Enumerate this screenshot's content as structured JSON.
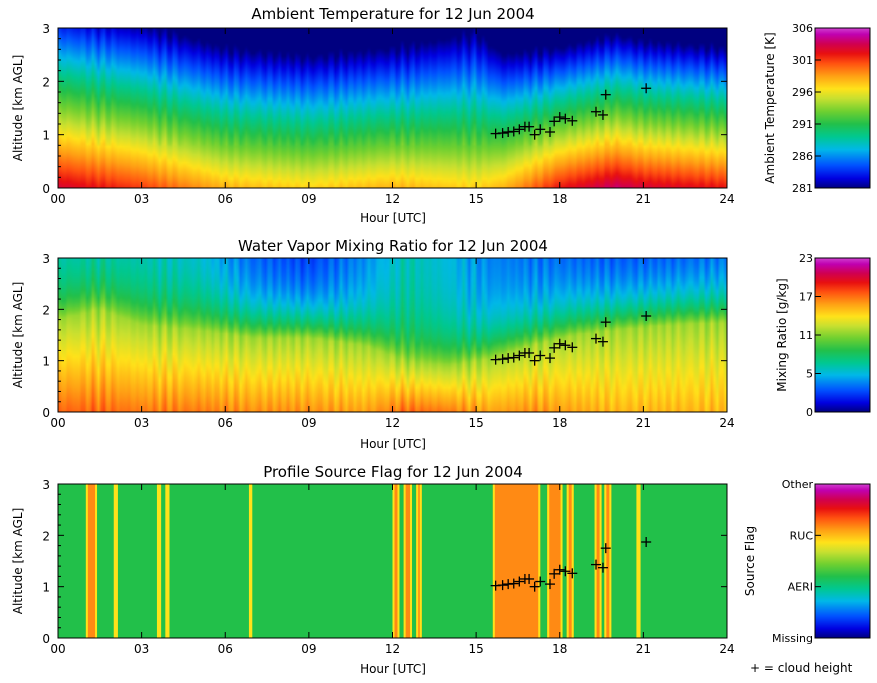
{
  "colors": {
    "missing": "#000080",
    "aeri": "#22c04a",
    "ruc": "#ff8a14",
    "other": "#ffe21a",
    "cloud_marker": "#000000"
  },
  "legend": {
    "cloud_text": "+ = cloud height"
  },
  "chart_data": [
    {
      "type": "heatmap",
      "title": "Ambient Temperature for 12 Jun 2004",
      "xlabel": "Hour [UTC]",
      "ylabel": "Altitude [km AGL]",
      "xlim": [
        0,
        24
      ],
      "ylim": [
        0,
        3
      ],
      "xticks": [
        "00",
        "03",
        "06",
        "09",
        "12",
        "15",
        "18",
        "21",
        "24"
      ],
      "yticks": [
        "0",
        "1",
        "2",
        "3"
      ],
      "colorbar": {
        "label": "Ambient Temperature [K]",
        "ticks": [
          "281",
          "286",
          "291",
          "296",
          "301",
          "306"
        ],
        "range": [
          281,
          306
        ]
      },
      "field": {
        "hours": [
          0,
          3,
          6,
          9,
          12,
          15,
          16,
          18,
          20,
          21,
          24
        ],
        "surface": [
          303,
          301,
          298,
          297,
          298,
          297,
          298,
          302,
          304,
          303,
          302
        ],
        "lapse_k_per_km": [
          6.5,
          6.5,
          6.5,
          6.5,
          6.5,
          5.5,
          6.8,
          8.0,
          8.0,
          8.0,
          8.0
        ]
      },
      "cloud_height": [
        {
          "x": 15.7,
          "y": 1.02
        },
        {
          "x": 15.95,
          "y": 1.03
        },
        {
          "x": 16.15,
          "y": 1.05
        },
        {
          "x": 16.35,
          "y": 1.06
        },
        {
          "x": 16.55,
          "y": 1.1
        },
        {
          "x": 16.75,
          "y": 1.15
        },
        {
          "x": 16.9,
          "y": 1.15
        },
        {
          "x": 17.1,
          "y": 1.0
        },
        {
          "x": 17.3,
          "y": 1.1
        },
        {
          "x": 17.65,
          "y": 1.05
        },
        {
          "x": 17.8,
          "y": 1.25
        },
        {
          "x": 18.0,
          "y": 1.33
        },
        {
          "x": 18.2,
          "y": 1.3
        },
        {
          "x": 18.45,
          "y": 1.26
        },
        {
          "x": 19.3,
          "y": 1.43
        },
        {
          "x": 19.55,
          "y": 1.37
        },
        {
          "x": 19.65,
          "y": 1.75
        },
        {
          "x": 21.1,
          "y": 1.87
        }
      ]
    },
    {
      "type": "heatmap",
      "title": "Water Vapor Mixing Ratio for 12 Jun 2004",
      "xlabel": "Hour [UTC]",
      "ylabel": "Altitude [km AGL]",
      "xlim": [
        0,
        24
      ],
      "ylim": [
        0,
        3
      ],
      "xticks": [
        "00",
        "03",
        "06",
        "09",
        "12",
        "15",
        "18",
        "21",
        "24"
      ],
      "yticks": [
        "0",
        "1",
        "2",
        "3"
      ],
      "colorbar": {
        "label": "Mixing Ratio [g/kg]",
        "ticks": [
          "0",
          "5",
          "11",
          "17",
          "23"
        ],
        "range": [
          0,
          23
        ]
      },
      "field": {
        "hours": [
          0,
          1.5,
          3,
          5,
          7,
          9,
          11,
          12.5,
          14,
          15.5,
          17,
          18.5,
          20,
          22,
          24
        ],
        "boundary_layer_top_km": [
          1.8,
          2.0,
          1.7,
          1.6,
          1.45,
          1.45,
          1.3,
          1.0,
          0.9,
          1.05,
          1.3,
          1.5,
          1.6,
          1.7,
          1.75
        ],
        "surface_g_per_kg": [
          17.5,
          17.5,
          17.0,
          17.0,
          16.5,
          16.5,
          16.0,
          17.5,
          17.0,
          16.0,
          16.5,
          16.0,
          15.5,
          15.5,
          15.5
        ],
        "upper_g_per_kg": [
          6.0,
          6.0,
          6.0,
          5.5,
          3.0,
          2.0,
          4.0,
          6.5,
          5.5,
          4.0,
          3.5,
          3.0,
          2.5,
          2.5,
          3.0
        ]
      },
      "cloud_height": [
        {
          "x": 15.7,
          "y": 1.02
        },
        {
          "x": 15.95,
          "y": 1.03
        },
        {
          "x": 16.15,
          "y": 1.05
        },
        {
          "x": 16.35,
          "y": 1.06
        },
        {
          "x": 16.55,
          "y": 1.1
        },
        {
          "x": 16.75,
          "y": 1.15
        },
        {
          "x": 16.9,
          "y": 1.15
        },
        {
          "x": 17.1,
          "y": 1.0
        },
        {
          "x": 17.3,
          "y": 1.1
        },
        {
          "x": 17.65,
          "y": 1.05
        },
        {
          "x": 17.8,
          "y": 1.25
        },
        {
          "x": 18.0,
          "y": 1.33
        },
        {
          "x": 18.2,
          "y": 1.3
        },
        {
          "x": 18.45,
          "y": 1.26
        },
        {
          "x": 19.3,
          "y": 1.43
        },
        {
          "x": 19.55,
          "y": 1.37
        },
        {
          "x": 19.65,
          "y": 1.75
        },
        {
          "x": 21.1,
          "y": 1.87
        }
      ]
    },
    {
      "type": "heatmap",
      "title": "Profile Source Flag for 12 Jun 2004",
      "xlabel": "Hour [UTC]",
      "ylabel": "Altitude [km AGL]",
      "xlim": [
        0,
        24
      ],
      "ylim": [
        0,
        3
      ],
      "xticks": [
        "00",
        "03",
        "06",
        "09",
        "12",
        "15",
        "18",
        "21",
        "24"
      ],
      "yticks": [
        "0",
        "1",
        "2",
        "3"
      ],
      "colorbar": {
        "label": "Source Flag",
        "ticks": [
          "Missing",
          "AERI",
          "RUC",
          "Other"
        ]
      },
      "default_source": "AERI",
      "segments": [
        {
          "start": 1.0,
          "end": 1.4,
          "source": "RUC"
        },
        {
          "start": 2.0,
          "end": 2.15,
          "source": "Other"
        },
        {
          "start": 3.55,
          "end": 3.7,
          "source": "Other"
        },
        {
          "start": 3.85,
          "end": 4.0,
          "source": "Other"
        },
        {
          "start": 6.85,
          "end": 6.97,
          "source": "Other"
        },
        {
          "start": 12.0,
          "end": 12.25,
          "source": "RUC"
        },
        {
          "start": 12.4,
          "end": 12.7,
          "source": "RUC"
        },
        {
          "start": 12.85,
          "end": 13.05,
          "source": "RUC"
        },
        {
          "start": 15.6,
          "end": 17.3,
          "source": "RUC"
        },
        {
          "start": 17.55,
          "end": 18.1,
          "source": "RUC"
        },
        {
          "start": 18.25,
          "end": 18.5,
          "source": "RUC"
        },
        {
          "start": 19.25,
          "end": 19.5,
          "source": "RUC"
        },
        {
          "start": 19.6,
          "end": 19.85,
          "source": "RUC"
        },
        {
          "start": 20.75,
          "end": 20.9,
          "source": "Other"
        }
      ],
      "cloud_height": [
        {
          "x": 15.7,
          "y": 1.02
        },
        {
          "x": 15.95,
          "y": 1.03
        },
        {
          "x": 16.15,
          "y": 1.05
        },
        {
          "x": 16.35,
          "y": 1.06
        },
        {
          "x": 16.55,
          "y": 1.1
        },
        {
          "x": 16.75,
          "y": 1.15
        },
        {
          "x": 16.9,
          "y": 1.15
        },
        {
          "x": 17.1,
          "y": 1.0
        },
        {
          "x": 17.3,
          "y": 1.1
        },
        {
          "x": 17.65,
          "y": 1.05
        },
        {
          "x": 17.8,
          "y": 1.25
        },
        {
          "x": 18.0,
          "y": 1.33
        },
        {
          "x": 18.2,
          "y": 1.3
        },
        {
          "x": 18.45,
          "y": 1.26
        },
        {
          "x": 19.3,
          "y": 1.43
        },
        {
          "x": 19.55,
          "y": 1.37
        },
        {
          "x": 19.65,
          "y": 1.75
        },
        {
          "x": 21.1,
          "y": 1.87
        }
      ]
    }
  ]
}
